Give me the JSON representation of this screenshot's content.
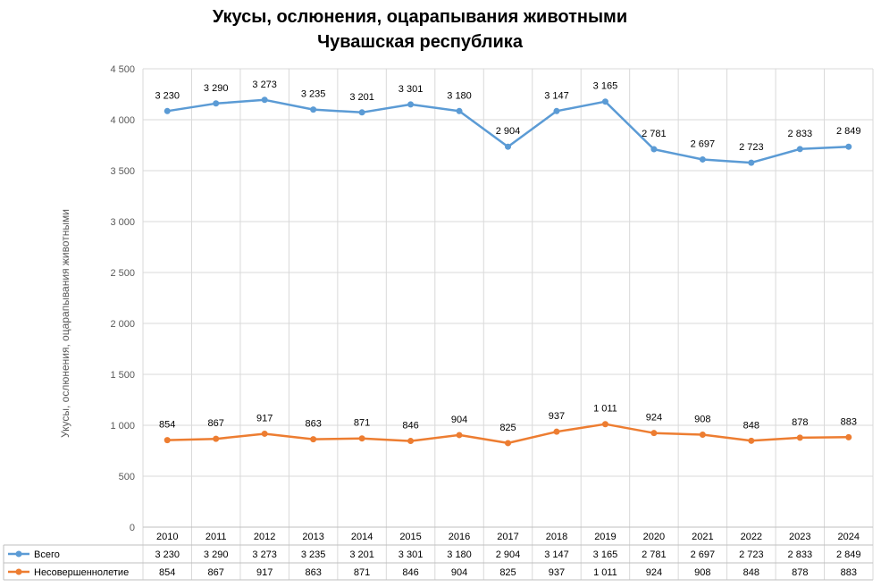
{
  "chart_data": {
    "type": "line",
    "title": "Укусы, ослюнения, оцарапывания животными",
    "subtitle": "Чувашская республика",
    "ylabel": "Укусы, ослюнения, оцарапывания животными",
    "xlabel": "",
    "ylim": [
      0,
      4500
    ],
    "y_ticks": [
      "0",
      "500",
      "1 000",
      "1 500",
      "2 000",
      "2 500",
      "3 000",
      "3 500",
      "4 000",
      "4 500"
    ],
    "y_tick_values": [
      0,
      500,
      1000,
      1500,
      2000,
      2500,
      3000,
      3500,
      4000,
      4500
    ],
    "grid": true,
    "legend": "table-bottom",
    "categories": [
      "2010",
      "2011",
      "2012",
      "2013",
      "2014",
      "2015",
      "2016",
      "2017",
      "2018",
      "2019",
      "2020",
      "2021",
      "2022",
      "2023",
      "2024"
    ],
    "series": [
      {
        "name": "Всего",
        "color": "#5B9BD5",
        "values": [
          4085,
          4160,
          4195,
          4100,
          4072,
          4150,
          4085,
          3735,
          4085,
          4178,
          3710,
          3610,
          3578,
          3712,
          3735
        ],
        "labels": [
          "3 230",
          "3 290",
          "3 273",
          "3 235",
          "3 201",
          "3 301",
          "3 180",
          "2 904",
          "3 147",
          "3 165",
          "2 781",
          "2 697",
          "2 723",
          "2 833",
          "2 849"
        ]
      },
      {
        "name": "Несовершеннолетие",
        "color": "#ED7D31",
        "values": [
          854,
          867,
          917,
          863,
          871,
          846,
          904,
          825,
          937,
          1011,
          924,
          908,
          848,
          878,
          883
        ],
        "labels": [
          "854",
          "867",
          "917",
          "863",
          "871",
          "846",
          "904",
          "825",
          "937",
          "1 011",
          "924",
          "908",
          "848",
          "878",
          "883"
        ]
      }
    ]
  }
}
